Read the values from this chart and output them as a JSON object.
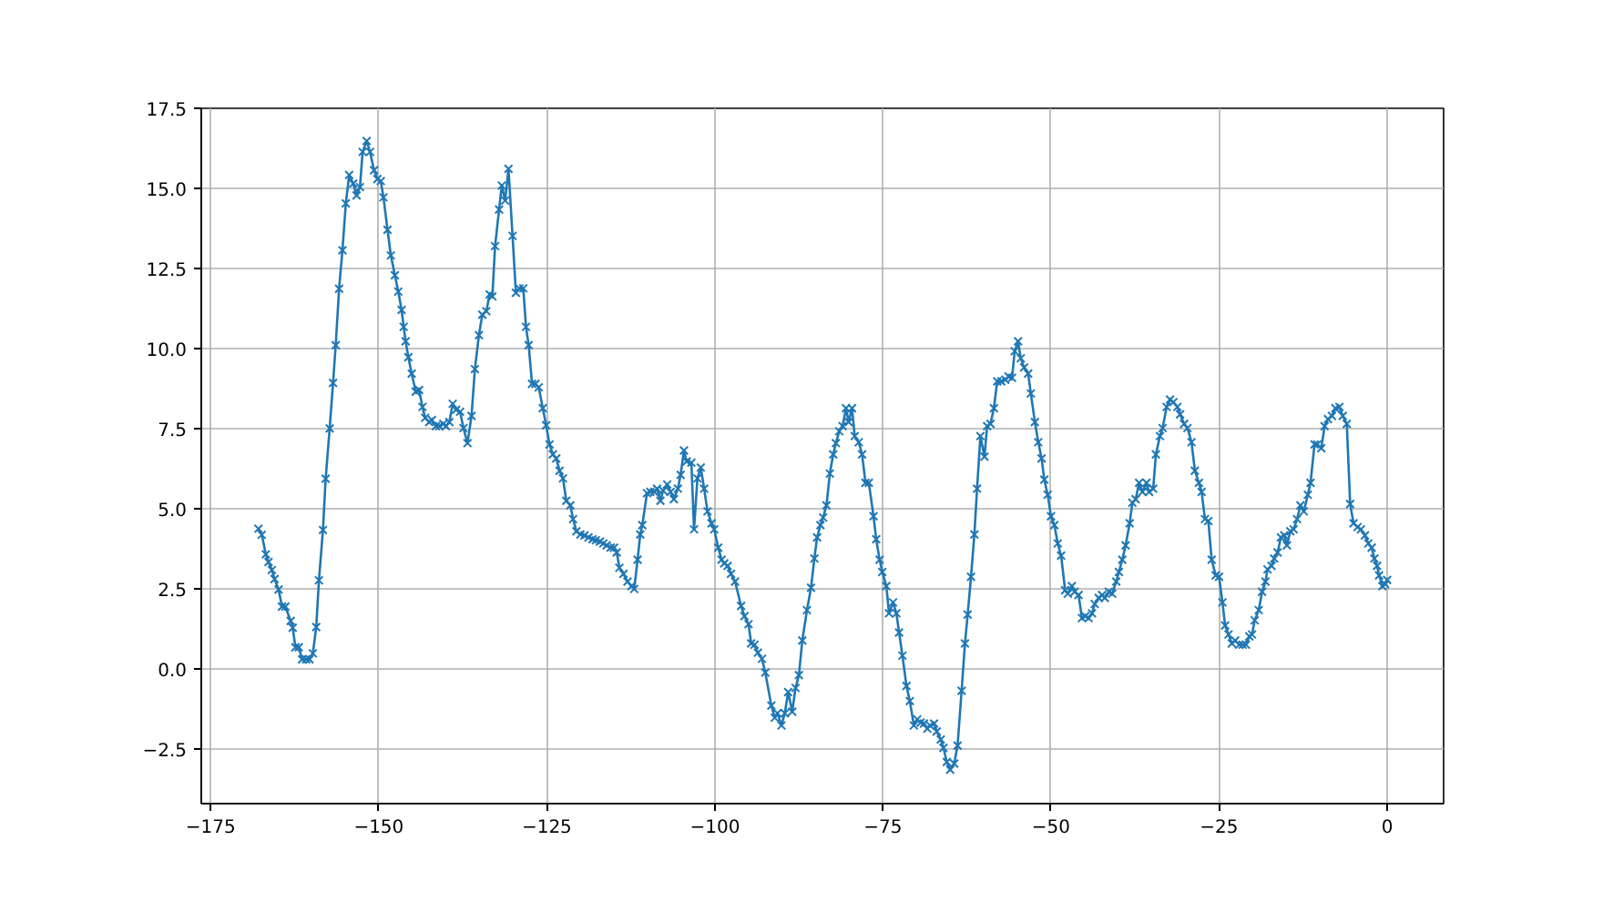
{
  "chart_data": {
    "type": "line",
    "color": "#1f77b4",
    "marker": "cross",
    "line_style": "solid",
    "grid": true,
    "xlim": [
      -176.4,
      8.4
    ],
    "ylim": [
      -4.2,
      17.5
    ],
    "xticks": [
      -175,
      -150,
      -125,
      -100,
      -75,
      -50,
      -25,
      0
    ],
    "yticks": [
      -2.5,
      {
        "value": 0,
        "label": "0.0"
      },
      2.5,
      {
        "value": 5,
        "label": "5.0"
      },
      7.5,
      {
        "value": 10,
        "label": "10.0"
      },
      12.5,
      {
        "value": 15,
        "label": "15.0"
      },
      17.5
    ],
    "x": [
      -167.9,
      -167.4,
      -166.8,
      -166.4,
      -165.9,
      -165.5,
      -164.9,
      -164.4,
      -163.9,
      -163.1,
      -162.8,
      -162.4,
      -161.9,
      -161.4,
      -160.8,
      -160.3,
      -159.8,
      -159.3,
      -158.9,
      -158.3,
      -157.9,
      -157.3,
      -156.8,
      -156.4,
      -155.9,
      -155.4,
      -154.9,
      -154.4,
      -153.8,
      -153.3,
      -152.8,
      -152.4,
      -151.8,
      -151.3,
      -150.7,
      -150.2,
      -149.7,
      -149.3,
      -148.7,
      -148.2,
      -147.6,
      -147.1,
      -146.6,
      -146.3,
      -146.0,
      -145.6,
      -145.1,
      -144.5,
      -144.0,
      -143.5,
      -143.1,
      -142.5,
      -142.1,
      -141.5,
      -141.0,
      -140.4,
      -140.0,
      -139.5,
      -139.0,
      -138.5,
      -137.9,
      -137.4,
      -136.8,
      -136.2,
      -135.7,
      -135.1,
      -134.6,
      -134.0,
      -133.5,
      -133.1,
      -132.7,
      -132.1,
      -131.7,
      -131.2,
      -130.7,
      -130.1,
      -129.6,
      -129.1,
      -128.5,
      -128.1,
      -127.7,
      -127.2,
      -126.7,
      -126.2,
      -125.6,
      -125.1,
      -124.6,
      -124.1,
      -123.6,
      -123.1,
      -122.6,
      -122.1,
      -121.5,
      -121.1,
      -120.6,
      -120.0,
      -119.4,
      -118.8,
      -118.2,
      -117.7,
      -117.1,
      -116.6,
      -116.1,
      -115.5,
      -115.0,
      -114.6,
      -114.2,
      -113.6,
      -113.0,
      -112.4,
      -112.0,
      -111.5,
      -111.1,
      -110.8,
      -110.1,
      -109.6,
      -109.0,
      -108.6,
      -108.1,
      -107.7,
      -107.1,
      -106.6,
      -106.1,
      -105.5,
      -105.1,
      -104.6,
      -104.2,
      -103.5,
      -103.1,
      -102.6,
      -102.1,
      -101.6,
      -101.1,
      -100.5,
      -100.1,
      -99.5,
      -99.0,
      -98.6,
      -98.1,
      -97.6,
      -97.0,
      -96.1,
      -95.6,
      -95.0,
      -94.6,
      -94.1,
      -93.6,
      -93.0,
      -92.5,
      -91.6,
      -91.1,
      -90.7,
      -90.1,
      -89.6,
      -89.1,
      -88.5,
      -88.0,
      -87.5,
      -87.0,
      -86.3,
      -85.7,
      -85.2,
      -84.8,
      -84.3,
      -83.9,
      -83.4,
      -82.9,
      -82.4,
      -82.0,
      -81.5,
      -81.0,
      -80.5,
      -80.1,
      -79.6,
      -79.2,
      -78.6,
      -78.1,
      -77.6,
      -77.1,
      -76.4,
      -76.0,
      -75.5,
      -75.1,
      -74.5,
      -74.1,
      -73.5,
      -73.0,
      -72.6,
      -72.1,
      -71.5,
      -71.0,
      -70.4,
      -69.9,
      -69.4,
      -68.9,
      -68.4,
      -68.0,
      -67.4,
      -67.0,
      -66.4,
      -66.0,
      -65.5,
      -65.0,
      -64.4,
      -63.9,
      -63.3,
      -62.8,
      -62.4,
      -61.9,
      -61.4,
      -61.0,
      -60.5,
      -59.9,
      -59.5,
      -59.0,
      -58.5,
      -58.0,
      -57.4,
      -56.8,
      -56.3,
      -55.8,
      -55.4,
      -54.9,
      -54.5,
      -54.0,
      -53.4,
      -53.0,
      -52.4,
      -51.9,
      -51.4,
      -51.0,
      -50.5,
      -50.0,
      -49.5,
      -49.0,
      -48.5,
      -47.9,
      -47.5,
      -46.9,
      -46.5,
      -45.9,
      -45.4,
      -44.9,
      -44.4,
      -43.9,
      -43.5,
      -42.9,
      -42.4,
      -42.0,
      -41.4,
      -40.9,
      -40.3,
      -39.9,
      -39.4,
      -38.9,
      -38.3,
      -37.9,
      -37.4,
      -36.9,
      -36.4,
      -35.8,
      -35.4,
      -34.8,
      -34.4,
      -33.8,
      -33.4,
      -32.8,
      -32.3,
      -31.8,
      -31.2,
      -30.8,
      -30.2,
      -29.7,
      -29.1,
      -28.6,
      -28.0,
      -27.6,
      -27.1,
      -26.6,
      -26.1,
      -25.5,
      -25.0,
      -24.5,
      -24.1,
      -23.6,
      -23.1,
      -22.6,
      -22.0,
      -21.5,
      -21.0,
      -20.5,
      -20.1,
      -19.7,
      -19.1,
      -18.6,
      -18.1,
      -17.8,
      -17.2,
      -16.8,
      -16.3,
      -15.8,
      -15.3,
      -14.9,
      -14.4,
      -13.9,
      -13.4,
      -12.9,
      -12.4,
      -11.8,
      -11.4,
      -10.8,
      -10.4,
      -9.8,
      -9.3,
      -8.8,
      -8.2,
      -7.7,
      -7.1,
      -6.6,
      -6.0,
      -5.5,
      -5.0,
      -4.4,
      -3.9,
      -3.3,
      -2.8,
      -2.3,
      -1.9,
      -1.5,
      -1.2,
      -0.7,
      -0.3,
      0.0
    ],
    "values": [
      4.38,
      4.19,
      3.58,
      3.34,
      3.09,
      2.81,
      2.48,
      1.95,
      1.95,
      1.5,
      1.29,
      0.68,
      0.68,
      0.3,
      0.3,
      0.3,
      0.49,
      1.31,
      2.77,
      4.34,
      5.94,
      7.51,
      8.93,
      10.11,
      11.87,
      13.07,
      14.53,
      15.42,
      15.15,
      14.78,
      15.04,
      16.14,
      16.48,
      16.14,
      15.57,
      15.29,
      15.23,
      14.72,
      13.71,
      12.91,
      12.29,
      11.78,
      11.21,
      10.68,
      10.23,
      9.73,
      9.22,
      8.66,
      8.71,
      8.18,
      7.84,
      7.71,
      7.77,
      7.58,
      7.58,
      7.65,
      7.58,
      7.71,
      8.28,
      8.09,
      8.03,
      7.52,
      7.05,
      7.9,
      9.36,
      10.42,
      11.06,
      11.17,
      11.69,
      11.63,
      13.2,
      14.34,
      15.09,
      14.62,
      15.61,
      13.52,
      11.74,
      11.88,
      11.88,
      10.68,
      10.11,
      8.9,
      8.9,
      8.79,
      8.14,
      7.61,
      7.01,
      6.7,
      6.57,
      6.19,
      5.95,
      5.25,
      5.11,
      4.68,
      4.3,
      4.2,
      4.17,
      4.11,
      4.05,
      4.02,
      3.98,
      3.92,
      3.86,
      3.79,
      3.79,
      3.64,
      3.16,
      2.97,
      2.73,
      2.59,
      2.5,
      3.41,
      4.2,
      4.49,
      5.49,
      5.53,
      5.53,
      5.63,
      5.25,
      5.57,
      5.76,
      5.53,
      5.3,
      5.63,
      6.06,
      6.82,
      6.48,
      6.44,
      4.36,
      5.95,
      6.29,
      5.63,
      4.92,
      4.55,
      4.36,
      3.79,
      3.41,
      3.3,
      3.22,
      2.97,
      2.73,
      1.97,
      1.65,
      1.4,
      0.8,
      0.76,
      0.51,
      0.32,
      -0.11,
      -1.14,
      -1.52,
      -1.38,
      -1.76,
      -1.38,
      -0.72,
      -1.33,
      -0.59,
      -0.19,
      0.89,
      1.84,
      2.54,
      3.45,
      4.11,
      4.49,
      4.73,
      5.11,
      6.1,
      6.7,
      7.05,
      7.42,
      7.58,
      8.14,
      7.71,
      8.14,
      7.27,
      7.08,
      6.7,
      5.81,
      5.81,
      4.77,
      4.05,
      3.41,
      3.03,
      2.59,
      1.74,
      2.08,
      1.74,
      1.14,
      0.42,
      -0.53,
      -1.0,
      -1.76,
      -1.57,
      -1.67,
      -1.7,
      -1.86,
      -1.76,
      -1.7,
      -1.95,
      -2.2,
      -2.46,
      -2.9,
      -3.14,
      -2.95,
      -2.39,
      -0.68,
      0.8,
      1.7,
      2.88,
      4.2,
      5.63,
      7.27,
      6.63,
      7.58,
      7.65,
      8.14,
      8.98,
      8.98,
      9.03,
      9.13,
      9.09,
      9.92,
      10.23,
      9.7,
      9.41,
      9.22,
      8.6,
      7.71,
      7.08,
      6.57,
      5.91,
      5.44,
      4.77,
      4.49,
      3.92,
      3.54,
      2.46,
      2.35,
      2.59,
      2.41,
      2.31,
      1.59,
      1.65,
      1.59,
      1.74,
      2.03,
      2.22,
      2.31,
      2.22,
      2.41,
      2.35,
      2.73,
      3.03,
      3.41,
      3.86,
      4.55,
      5.19,
      5.3,
      5.81,
      5.53,
      5.81,
      5.53,
      5.63,
      6.7,
      7.27,
      7.52,
      8.18,
      8.41,
      8.33,
      8.18,
      7.95,
      7.65,
      7.52,
      7.08,
      6.19,
      5.81,
      5.53,
      4.68,
      4.62,
      3.41,
      2.92,
      2.88,
      2.08,
      1.36,
      1.08,
      0.8,
      0.89,
      0.76,
      0.76,
      0.76,
      1.02,
      1.08,
      1.52,
      1.84,
      2.41,
      2.73,
      3.11,
      3.22,
      3.45,
      3.64,
      4.11,
      4.17,
      3.86,
      4.3,
      4.36,
      4.68,
      5.11,
      4.92,
      5.44,
      5.81,
      7.01,
      7.01,
      6.89,
      7.58,
      7.8,
      7.9,
      8.14,
      8.18,
      7.9,
      7.65,
      5.15,
      4.55,
      4.43,
      4.36,
      4.17,
      3.92,
      3.79,
      3.45,
      3.22,
      2.92,
      2.59,
      2.65,
      2.78
    ]
  }
}
